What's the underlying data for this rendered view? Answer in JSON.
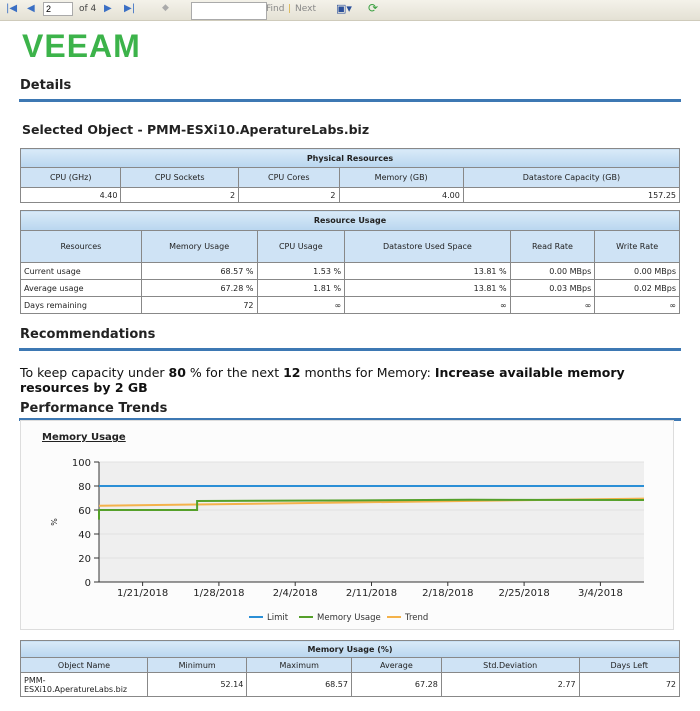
{
  "toolbar": {
    "page": "2",
    "of": "of 4",
    "find": "Find",
    "sep": "|",
    "next": "Next",
    "find_value": ""
  },
  "logo": "VeeAM",
  "details_heading": "Details",
  "selected_object": "Selected Object - PMM-ESXi10.AperatureLabs.biz",
  "physical": {
    "title": "Physical Resources",
    "headers": [
      "CPU (GHz)",
      "CPU Sockets",
      "CPU Cores",
      "Memory (GB)",
      "Datastore Capacity (GB)"
    ],
    "values": [
      "4.40",
      "2",
      "2",
      "4.00",
      "157.25"
    ]
  },
  "usage": {
    "title": "Resource Usage",
    "headers": [
      "Resources",
      "Memory Usage",
      "CPU Usage",
      "Datastore Used Space",
      "Read Rate",
      "Write Rate"
    ],
    "rows": [
      [
        "Current usage",
        "68.57 %",
        "1.53 %",
        "13.81 %",
        "0.00 MBps",
        "0.00 MBps"
      ],
      [
        "Average usage",
        "67.28 %",
        "1.81 %",
        "13.81 %",
        "0.03 MBps",
        "0.02 MBps"
      ],
      [
        "Days remaining",
        "72",
        "∞",
        "∞",
        "∞",
        "∞"
      ]
    ]
  },
  "recommendations_heading": "Recommendations",
  "recommendation": {
    "p1": "To keep capacity under ",
    "pct": "80",
    "p2": " % for the next ",
    "months": "12",
    "p3": " months for Memory: ",
    "action": "Increase available memory resources by 2 GB"
  },
  "trends_heading": "Performance Trends",
  "chart_data": {
    "type": "line",
    "title": "Memory Usage",
    "ylabel": "%",
    "ylim": [
      0,
      100
    ],
    "yticks": [
      "0",
      "20",
      "40",
      "60",
      "80",
      "100"
    ],
    "xticks": [
      "1/21/2018",
      "1/28/2018",
      "2/4/2018",
      "2/11/2018",
      "2/18/2018",
      "2/25/2018",
      "3/4/2018"
    ],
    "xrange": [
      "1/17/2018",
      "3/8/2018"
    ],
    "grid": true,
    "legend": "bottom",
    "series": [
      {
        "name": "Limit",
        "color": "#2b8fd6",
        "points": [
          [
            "1/17/2018",
            80
          ],
          [
            "3/8/2018",
            80
          ]
        ]
      },
      {
        "name": "Memory Usage",
        "color": "#55a02a",
        "points": [
          [
            "1/17/2018",
            52
          ],
          [
            "1/17/2018",
            60
          ],
          [
            "1/26/2018",
            60
          ],
          [
            "1/26/2018",
            67.5
          ],
          [
            "2/10/2018",
            68
          ],
          [
            "2/20/2018",
            68.5
          ],
          [
            "3/8/2018",
            68.3
          ]
        ]
      },
      {
        "name": "Trend",
        "color": "#f4b24a",
        "points": [
          [
            "1/17/2018",
            63.5
          ],
          [
            "3/8/2018",
            69.5
          ]
        ]
      }
    ]
  },
  "summary": {
    "title": "Memory Usage (%)",
    "headers": [
      "Object Name",
      "Minimum",
      "Maximum",
      "Average",
      "Std.Deviation",
      "Days Left"
    ],
    "row": [
      "PMM-ESXi10.AperatureLabs.biz",
      "52.14",
      "68.57",
      "67.28",
      "2.77",
      "72"
    ]
  }
}
